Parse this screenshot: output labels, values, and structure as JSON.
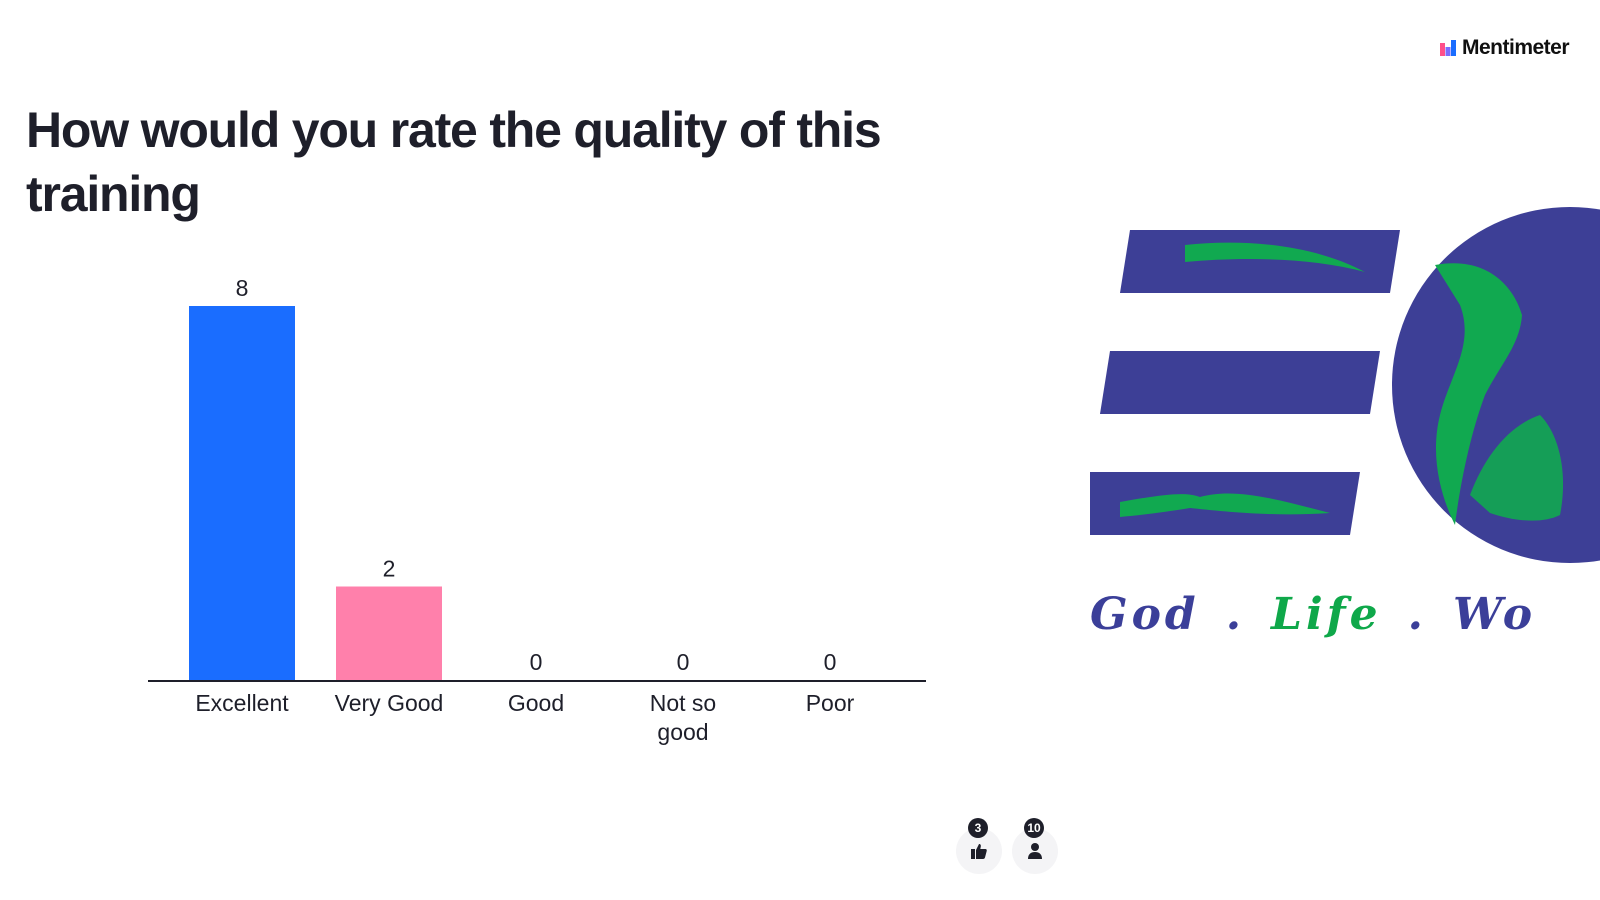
{
  "brand": {
    "name": "Mentimeter",
    "icon": "mentimeter-logo-icon"
  },
  "slide": {
    "question": "How would you rate the quality of this training"
  },
  "chart_data": {
    "type": "bar",
    "categories": [
      "Excellent",
      "Very Good",
      "Good",
      "Not so good",
      "Poor"
    ],
    "values": [
      8,
      2,
      0,
      0,
      0
    ],
    "colors": [
      "#1a6dff",
      "#ff80ab",
      "#1a6dff",
      "#1a6dff",
      "#1a6dff"
    ],
    "ylim": [
      0,
      8
    ],
    "grid": false,
    "legend": "none"
  },
  "logo": {
    "tagline_god": "God",
    "tagline_dot": ".",
    "tagline_life": "Life",
    "tagline_wo": "Wo",
    "colors": {
      "navy": "#3b3f99",
      "green": "#0fa84a"
    }
  },
  "footer": {
    "reactions": {
      "count": "3",
      "icon": "thumbs-up-icon"
    },
    "participants": {
      "count": "10",
      "icon": "person-icon"
    }
  }
}
